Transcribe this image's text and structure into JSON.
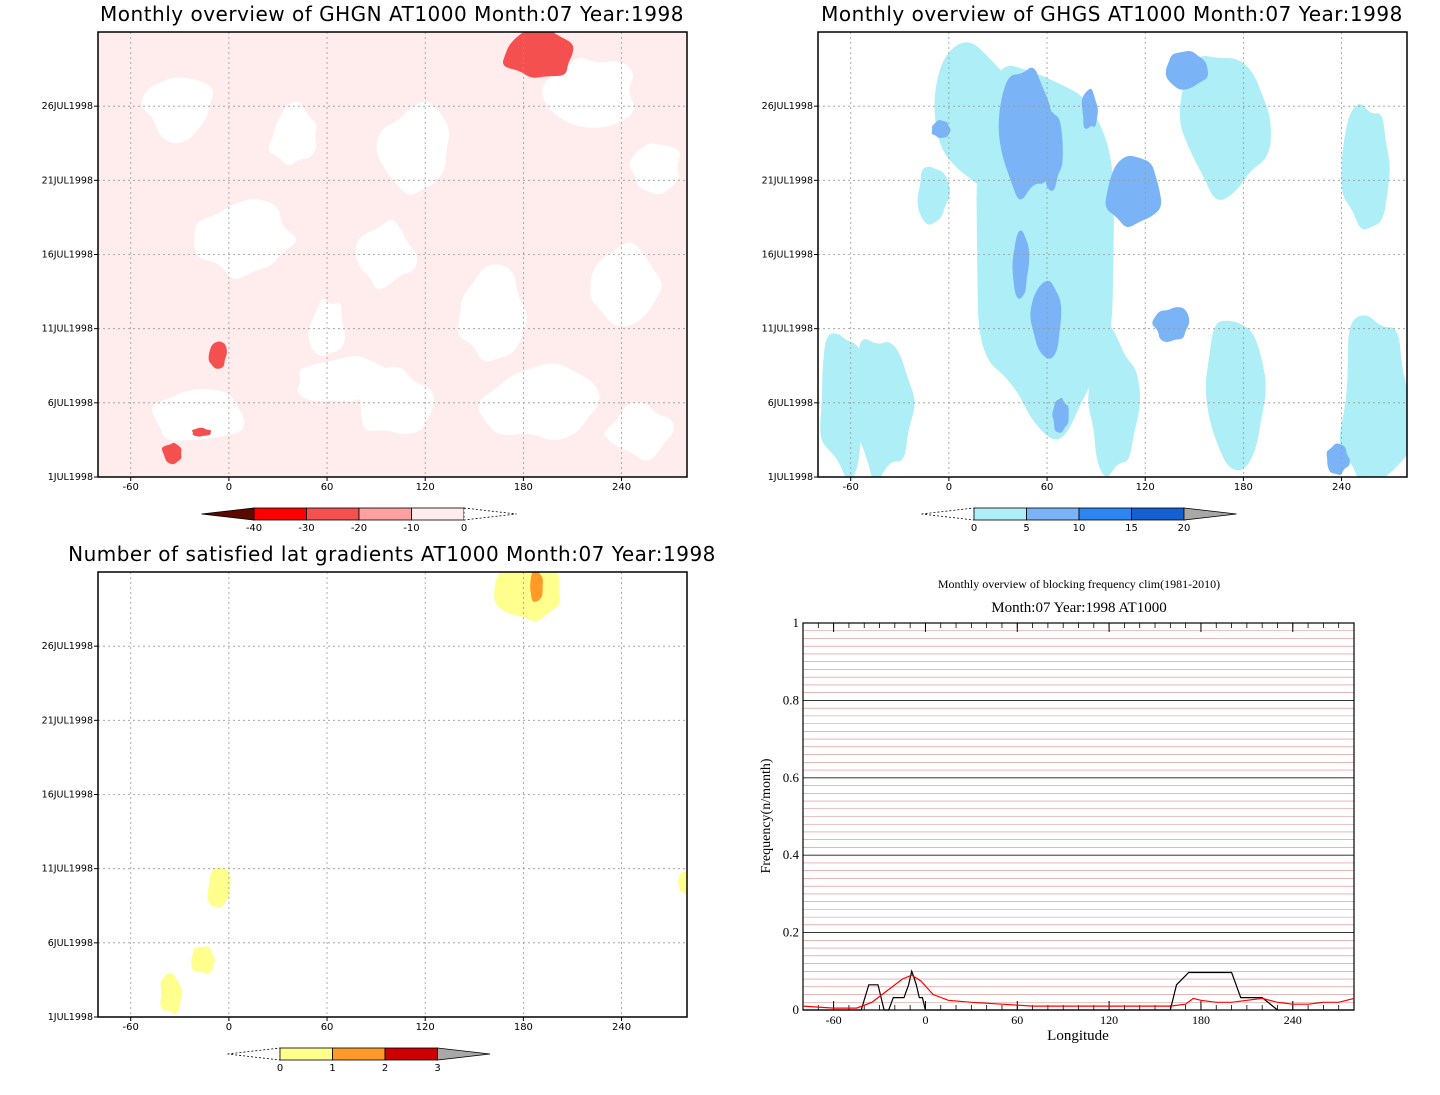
{
  "colors": {
    "ghgn": [
      "#5a0a00",
      "#ff0000",
      "#f55050",
      "#ffa0a0",
      "#ffecec"
    ],
    "ghgs": [
      "#aeeef7",
      "#7ab4f6",
      "#2c86f2",
      "#1560d0",
      "#a8a8a8"
    ],
    "grad": [
      "#ffff8e",
      "#ff9a28",
      "#cc0000",
      "#a8a8a8"
    ]
  },
  "chart_data": [
    {
      "type": "heatmap",
      "title": "Monthly overview of GHGN AT1000 Month:07 Year:1998",
      "x_ticks": [
        "-60",
        "0",
        "60",
        "120",
        "180",
        "240"
      ],
      "y_ticks": [
        "1JUL1998",
        "6JUL1998",
        "11JUL1998",
        "16JUL1998",
        "21JUL1998",
        "26JUL1998"
      ],
      "xlim": [
        -80,
        280
      ],
      "ylim": [
        1,
        31
      ],
      "colorbar": {
        "ticks": [
          "-40",
          "-30",
          "-20",
          "-10",
          "0"
        ]
      },
      "features": [
        {
          "lon": 190,
          "day": 29.5,
          "level": -20,
          "rx": 22,
          "ry": 1.6
        },
        {
          "lon": -7,
          "day": 9.2,
          "level": -20,
          "rx": 6,
          "ry": 0.9
        },
        {
          "lon": -35,
          "day": 2.6,
          "level": -20,
          "rx": 6,
          "ry": 0.7
        },
        {
          "lon": -17,
          "day": 4.0,
          "level": -20,
          "rx": 6,
          "ry": 0.3
        }
      ]
    },
    {
      "type": "heatmap",
      "title": "Monthly overview of GHGS AT1000 Month:07 Year:1998",
      "x_ticks": [
        "-60",
        "0",
        "60",
        "120",
        "180",
        "240"
      ],
      "y_ticks": [
        "1JUL1998",
        "6JUL1998",
        "11JUL1998",
        "16JUL1998",
        "21JUL1998",
        "26JUL1998"
      ],
      "xlim": [
        -80,
        280
      ],
      "ylim": [
        1,
        31
      ],
      "colorbar": {
        "ticks": [
          "0",
          "5",
          "10",
          "15",
          "20"
        ]
      },
      "features": [
        {
          "lon": 48,
          "day": 24.5,
          "level": 5,
          "rx": 18,
          "ry": 4.5
        },
        {
          "lon": 113,
          "day": 20.3,
          "level": 5,
          "rx": 17,
          "ry": 2.3
        },
        {
          "lon": 145,
          "day": 28.5,
          "level": 5,
          "rx": 14,
          "ry": 1.3
        },
        {
          "lon": 63,
          "day": 23.0,
          "level": 5,
          "rx": 7,
          "ry": 2.5
        },
        {
          "lon": 60,
          "day": 11.8,
          "level": 5,
          "rx": 9,
          "ry": 2.5
        },
        {
          "lon": 136,
          "day": 11.3,
          "level": 5,
          "rx": 11,
          "ry": 1.2
        },
        {
          "lon": 44,
          "day": 15.3,
          "level": 5,
          "rx": 5,
          "ry": 2.3
        },
        {
          "lon": 68,
          "day": 5.2,
          "level": 5,
          "rx": 5,
          "ry": 1.2
        },
        {
          "lon": 238,
          "day": 2.2,
          "level": 5,
          "rx": 7,
          "ry": 1.0
        },
        {
          "lon": 86,
          "day": 25.8,
          "level": 5,
          "rx": 5,
          "ry": 1.4
        },
        {
          "lon": -5,
          "day": 24.4,
          "level": 5,
          "rx": 6,
          "ry": 0.6
        }
      ]
    },
    {
      "type": "heatmap",
      "title": "Number of satisfied lat gradients AT1000 Month:07 Year:1998",
      "x_ticks": [
        "-60",
        "0",
        "60",
        "120",
        "180",
        "240"
      ],
      "y_ticks": [
        "1JUL1998",
        "6JUL1998",
        "11JUL1998",
        "16JUL1998",
        "21JUL1998",
        "26JUL1998"
      ],
      "xlim": [
        -80,
        280
      ],
      "ylim": [
        1,
        31
      ],
      "colorbar": {
        "ticks": [
          "0",
          "1",
          "2",
          "3"
        ]
      },
      "features": [
        {
          "lon": 183,
          "day": 29.8,
          "level": 1,
          "rx": 20,
          "ry": 2.0
        },
        {
          "lon": 188,
          "day": 30.0,
          "level": 2,
          "rx": 4,
          "ry": 1.2
        },
        {
          "lon": -6,
          "day": 9.7,
          "level": 1,
          "rx": 7,
          "ry": 1.5
        },
        {
          "lon": -16,
          "day": 4.9,
          "level": 1,
          "rx": 8,
          "ry": 1.0
        },
        {
          "lon": -35,
          "day": 2.6,
          "level": 1,
          "rx": 7,
          "ry": 1.4
        },
        {
          "lon": 278,
          "day": 10.1,
          "level": 1,
          "rx": 3,
          "ry": 0.8
        }
      ]
    },
    {
      "type": "line",
      "title": "Monthly overview of blocking frequency clim(1981-2010)",
      "subtitle": "Month:07 Year:1998  AT1000",
      "xlabel": "Longitude",
      "ylabel": "Frequency(n/month)",
      "xlim": [
        -80,
        280
      ],
      "ylim": [
        0,
        1
      ],
      "x_ticks": [
        "-60",
        "0",
        "60",
        "120",
        "180",
        "240"
      ],
      "y_ticks": [
        "0",
        "0.2",
        "0.4",
        "0.6",
        "0.8",
        "1"
      ],
      "series": [
        {
          "color": "#000000",
          "x": [
            -80,
            -42,
            -37,
            -31,
            -27,
            -24,
            -21,
            -14,
            -11,
            -9,
            -8,
            -6,
            -4,
            -2,
            0,
            3,
            5,
            6,
            8,
            160,
            164,
            172,
            200,
            203,
            206,
            208,
            212,
            220,
            230,
            240,
            280
          ],
          "y": [
            0,
            0,
            0.065,
            0.065,
            0,
            0,
            0.032,
            0.032,
            0.065,
            0.1,
            0.09,
            0.065,
            0.032,
            0.032,
            0,
            0,
            0,
            0,
            0,
            0,
            0.065,
            0.097,
            0.097,
            0.065,
            0.032,
            0.032,
            0.032,
            0.032,
            0,
            0,
            0
          ]
        },
        {
          "color": "#ff0000",
          "x": [
            -80,
            -60,
            -45,
            -35,
            -25,
            -15,
            -9,
            -3,
            5,
            15,
            30,
            50,
            70,
            90,
            110,
            130,
            150,
            160,
            170,
            175,
            180,
            190,
            200,
            210,
            220,
            230,
            240,
            250,
            260,
            270,
            280
          ],
          "y": [
            0.01,
            0.005,
            0.005,
            0.02,
            0.05,
            0.08,
            0.09,
            0.075,
            0.04,
            0.025,
            0.02,
            0.015,
            0.01,
            0.01,
            0.01,
            0.01,
            0.01,
            0.01,
            0.015,
            0.03,
            0.025,
            0.02,
            0.02,
            0.025,
            0.03,
            0.02,
            0.015,
            0.015,
            0.02,
            0.02,
            0.03
          ]
        }
      ]
    }
  ]
}
